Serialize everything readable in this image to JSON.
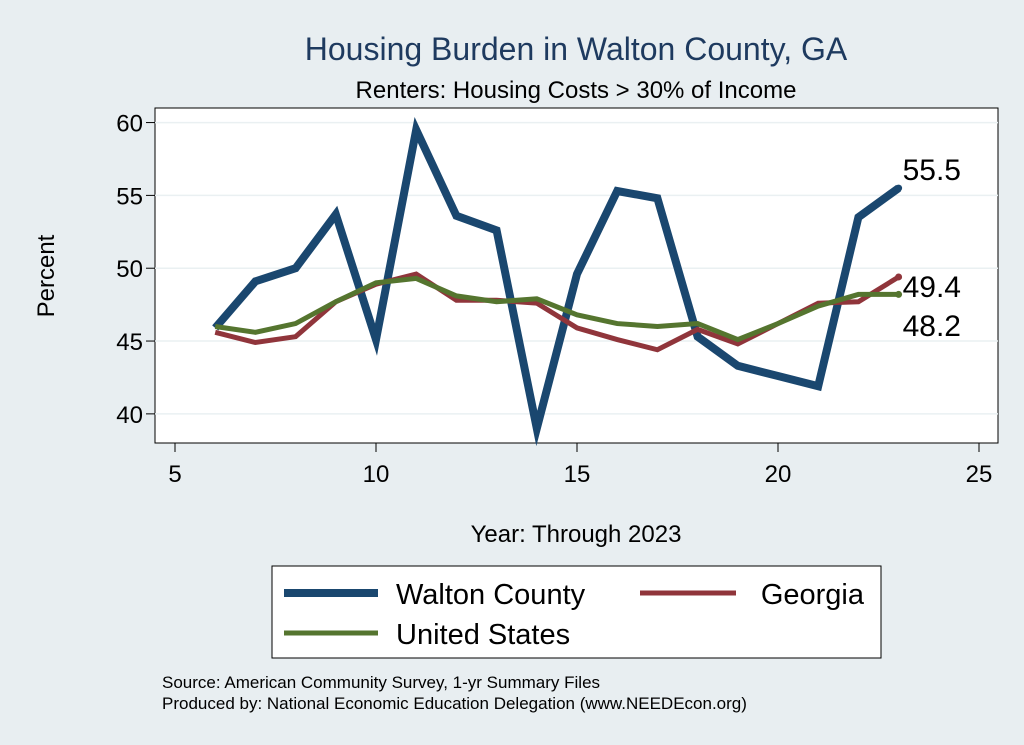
{
  "chart_data": {
    "type": "line",
    "title": "Housing Burden in Walton County, GA",
    "subtitle": "Renters: Housing Costs > 30% of Income",
    "xlabel": "Year: Through 2023",
    "ylabel": "Percent",
    "xlim": [
      5,
      25
    ],
    "ylim": [
      38,
      61
    ],
    "xticks": [
      "5",
      "10",
      "15",
      "20",
      "25"
    ],
    "yticks": [
      "40",
      "45",
      "50",
      "55",
      "60"
    ],
    "grid": true,
    "legend_position": "bottom",
    "x": [
      6,
      7,
      8,
      9,
      10,
      11,
      12,
      13,
      14,
      15,
      16,
      17,
      18,
      19,
      20,
      21,
      22,
      23
    ],
    "series": [
      {
        "name": "Walton County",
        "color": "#1a476f",
        "values": [
          45.9,
          49.1,
          50.0,
          53.7,
          45.1,
          59.5,
          53.6,
          52.6,
          39.0,
          49.6,
          55.3,
          54.8,
          45.3,
          43.3,
          42.6,
          41.9,
          53.5,
          55.5
        ],
        "end_label": "55.5"
      },
      {
        "name": "Georgia",
        "color": "#90353b",
        "values": [
          45.6,
          44.9,
          45.3,
          47.7,
          48.9,
          49.6,
          47.8,
          47.8,
          47.6,
          45.9,
          45.1,
          44.4,
          45.8,
          44.8,
          46.2,
          47.6,
          47.7,
          49.4
        ],
        "end_label": "49.4"
      },
      {
        "name": "United States",
        "color": "#55752f",
        "values": [
          46.0,
          45.6,
          46.2,
          47.7,
          49.0,
          49.3,
          48.1,
          47.7,
          47.9,
          46.8,
          46.2,
          46.0,
          46.2,
          45.1,
          46.2,
          47.4,
          48.2,
          48.2
        ],
        "end_label": "48.2"
      }
    ]
  },
  "footer": {
    "source": "Source: American Community Survey, 1-yr Summary Files",
    "produced_by": "Produced by: National Economic Education Delegation (www.NEEDEcon.org)"
  }
}
